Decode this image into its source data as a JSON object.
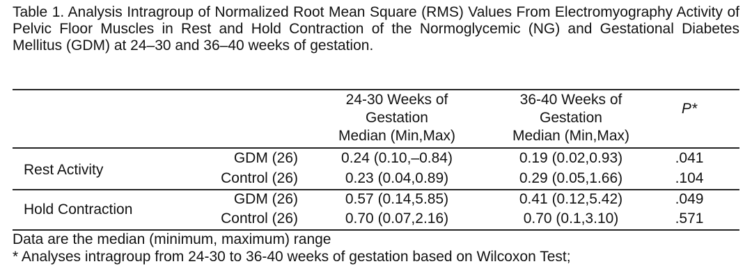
{
  "table": {
    "caption": "Table 1. Analysis Intragroup of Normalized Root Mean Square (RMS) Values From Electromyography Activity of Pelvic Floor Muscles in Rest and Hold Contraction of the Normoglycemic (NG) and Gestational Diabetes Mellitus (GDM) at 24–30 and 36–40 weeks of gestation.",
    "headers": {
      "col1_line1": "24-30 Weeks of",
      "col1_line2": "Gestation",
      "col1_line3": "Median (Min,Max)",
      "col2_line1": "36-40 Weeks of",
      "col2_line2": "Gestation",
      "col2_line3": "Median (Min,Max)",
      "p": "P*"
    },
    "sections": [
      {
        "label": "Rest Activity",
        "rows": [
          {
            "group": "GDM (26)",
            "weeks_24_30": "0.24 (0.10,–0.84)",
            "weeks_36_40": "0.19 (0.02,0.93)",
            "p": ".041"
          },
          {
            "group": "Control (26)",
            "weeks_24_30": "0.23 (0.04,0.89)",
            "weeks_36_40": "0.29 (0.05,1.66)",
            "p": ".104"
          }
        ]
      },
      {
        "label": "Hold Contraction",
        "rows": [
          {
            "group": "GDM (26)",
            "weeks_24_30": "0.57 (0.14,5.85)",
            "weeks_36_40": "0.41 (0.12,5.42)",
            "p": ".049"
          },
          {
            "group": "Control (26)",
            "weeks_24_30": "0.70 (0.07,2.16)",
            "weeks_36_40": "0.70 (0.1,3.10)",
            "p": ".571"
          }
        ]
      }
    ],
    "footnotes": [
      "Data are the median (minimum, maximum) range",
      "* Analyses intragroup from 24-30 to 36-40 weeks of gestation based on Wilcoxon Test;"
    ]
  }
}
